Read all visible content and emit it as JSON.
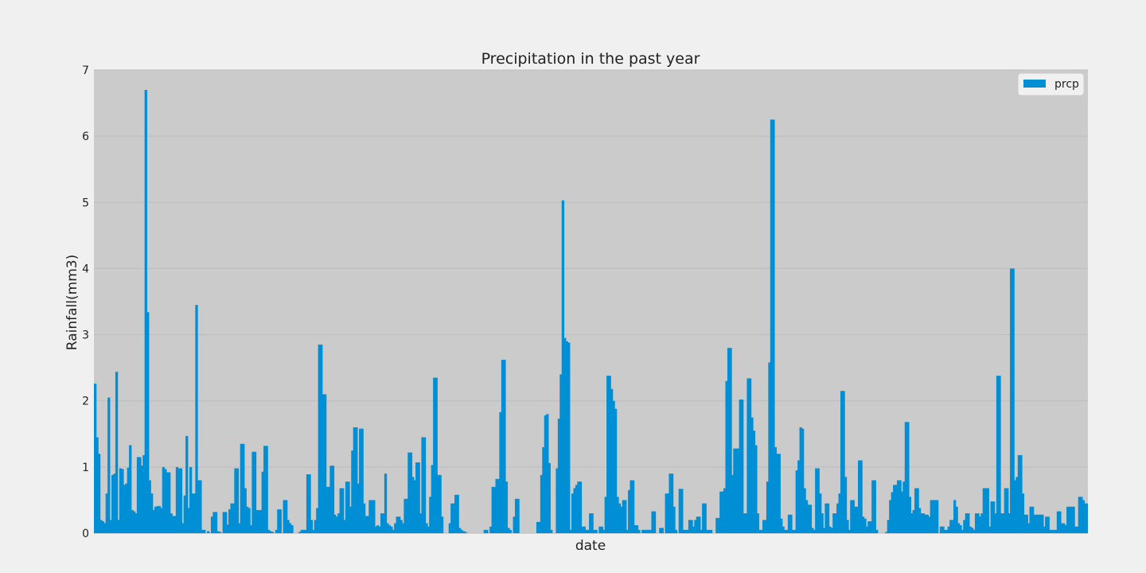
{
  "chart_data": {
    "type": "bar",
    "title": "Precipitation in the past year",
    "xlabel": "date",
    "ylabel": "Rainfall(mm3)",
    "ylim": [
      0,
      7
    ],
    "yticks": [
      0,
      1,
      2,
      3,
      4,
      5,
      6,
      7
    ],
    "grid": true,
    "legend_position": "top-right",
    "colors": {
      "bar": "#008fd5",
      "plot_bg": "#cbcbcb",
      "figure_bg": "#f0f0f0"
    },
    "series": [
      {
        "name": "prcp",
        "values": [
          2.26,
          1.45,
          1.2,
          0.2,
          0.18,
          0.15,
          0.6,
          2.05,
          0.2,
          0.88,
          0.9,
          2.44,
          0.2,
          0.98,
          0.97,
          0.73,
          0.75,
          0.99,
          1.33,
          0.35,
          0.33,
          0.3,
          1.15,
          1.15,
          1.02,
          1.18,
          6.7,
          3.34,
          0.8,
          0.6,
          0.35,
          0.4,
          0.41,
          0.41,
          0.38,
          1.0,
          0.97,
          0.92,
          0.92,
          0.3,
          0.26,
          0.26,
          1.0,
          0.98,
          0.98,
          0.15,
          0.57,
          1.47,
          0.38,
          1.0,
          0.6,
          0.6,
          3.45,
          0.8,
          0.8,
          0.05,
          0.05,
          0.0,
          0.03,
          0.0,
          0.25,
          0.32,
          0.32,
          0.03,
          0.02,
          0.0,
          0.32,
          0.32,
          0.13,
          0.36,
          0.45,
          0.45,
          0.98,
          0.98,
          0.15,
          1.35,
          1.35,
          0.68,
          0.4,
          0.38,
          0.12,
          1.23,
          1.23,
          0.35,
          0.35,
          0.35,
          0.93,
          1.32,
          1.32,
          0.05,
          0.03,
          0.02,
          0.0,
          0.05,
          0.36,
          0.36,
          0.0,
          0.5,
          0.5,
          0.2,
          0.15,
          0.12,
          0.0,
          0.0,
          0.0,
          0.02,
          0.05,
          0.05,
          0.05,
          0.89,
          0.89,
          0.2,
          0.05,
          0.2,
          0.38,
          2.85,
          2.85,
          2.1,
          2.1,
          0.7,
          0.7,
          1.02,
          1.02,
          0.28,
          0.25,
          0.3,
          0.68,
          0.68,
          0.2,
          0.78,
          0.78,
          0.4,
          1.25,
          1.6,
          1.6,
          0.75,
          1.58,
          1.58,
          0.45,
          0.26,
          0.26,
          0.5,
          0.5,
          0.5,
          0.1,
          0.12,
          0.1,
          0.3,
          0.3,
          0.9,
          0.15,
          0.12,
          0.1,
          0.05,
          0.15,
          0.25,
          0.25,
          0.2,
          0.15,
          0.52,
          0.52,
          1.22,
          1.22,
          0.85,
          0.8,
          1.07,
          1.07,
          0.3,
          1.45,
          1.45,
          0.15,
          0.1,
          0.55,
          1.03,
          2.35,
          2.35,
          0.88,
          0.88,
          0.25,
          0.0,
          0.0,
          0.0,
          0.15,
          0.45,
          0.45,
          0.58,
          0.58,
          0.08,
          0.05,
          0.03,
          0.02,
          0.0,
          0.0,
          0.0,
          0.0,
          0.0,
          0.0,
          0.0,
          0.0,
          0.0,
          0.05,
          0.05,
          0.0,
          0.1,
          0.7,
          0.7,
          0.82,
          0.82,
          1.83,
          2.62,
          2.62,
          0.78,
          0.08,
          0.05,
          0.0,
          0.25,
          0.52,
          0.52,
          0.0,
          0.0,
          0.0,
          0.0,
          0.0,
          0.0,
          0.0,
          0.0,
          0.0,
          0.17,
          0.17,
          0.88,
          1.3,
          1.78,
          1.8,
          1.06,
          0.05,
          0.0,
          0.0,
          0.98,
          1.73,
          2.4,
          5.03,
          2.95,
          2.9,
          2.88,
          0.05,
          0.6,
          0.68,
          0.73,
          0.78,
          0.78,
          0.1,
          0.1,
          0.05,
          0.05,
          0.3,
          0.3,
          0.05,
          0.05,
          0.0,
          0.1,
          0.1,
          0.05,
          0.55,
          2.38,
          2.38,
          2.18,
          2.0,
          1.88,
          0.55,
          0.45,
          0.4,
          0.5,
          0.5,
          0.05,
          0.65,
          0.8,
          0.8,
          0.12,
          0.12,
          0.05,
          0.0,
          0.05,
          0.05,
          0.05,
          0.05,
          0.05,
          0.33,
          0.33,
          0.0,
          0.0,
          0.08,
          0.08,
          0.0,
          0.6,
          0.6,
          0.9,
          0.9,
          0.4,
          0.05,
          0.0,
          0.67,
          0.67,
          0.05,
          0.05,
          0.05,
          0.2,
          0.2,
          0.1,
          0.2,
          0.25,
          0.25,
          0.05,
          0.45,
          0.45,
          0.05,
          0.05,
          0.05,
          0.0,
          0.0,
          0.23,
          0.23,
          0.63,
          0.63,
          0.68,
          2.3,
          2.8,
          2.8,
          0.88,
          1.28,
          1.28,
          1.28,
          2.02,
          2.02,
          0.3,
          0.3,
          2.34,
          2.34,
          1.75,
          1.55,
          1.33,
          0.3,
          0.05,
          0.05,
          0.2,
          0.2,
          0.78,
          2.58,
          6.25,
          6.25,
          1.3,
          1.2,
          1.2,
          0.22,
          0.1,
          0.05,
          0.05,
          0.28,
          0.28,
          0.05,
          0.05,
          0.95,
          1.1,
          1.6,
          1.58,
          0.68,
          0.5,
          0.43,
          0.43,
          0.08,
          0.05,
          0.98,
          0.98,
          0.6,
          0.3,
          0.08,
          0.45,
          0.45,
          0.1,
          0.08,
          0.3,
          0.3,
          0.45,
          0.6,
          2.15,
          2.15,
          0.85,
          0.2,
          0.05,
          0.5,
          0.5,
          0.4,
          0.4,
          1.1,
          1.1,
          0.25,
          0.22,
          0.1,
          0.18,
          0.18,
          0.8,
          0.8,
          0.05,
          0.0,
          0.0,
          0.0,
          0.0,
          0.02,
          0.2,
          0.5,
          0.62,
          0.73,
          0.73,
          0.8,
          0.8,
          0.63,
          0.78,
          1.68,
          1.68,
          0.55,
          0.3,
          0.35,
          0.68,
          0.68,
          0.38,
          0.3,
          0.3,
          0.28,
          0.28,
          0.25,
          0.5,
          0.5,
          0.5,
          0.5,
          0.0,
          0.1,
          0.1,
          0.05,
          0.05,
          0.1,
          0.2,
          0.2,
          0.5,
          0.4,
          0.15,
          0.12,
          0.05,
          0.2,
          0.3,
          0.3,
          0.1,
          0.08,
          0.05,
          0.3,
          0.3,
          0.25,
          0.3,
          0.68,
          0.68,
          0.68,
          0.1,
          0.48,
          0.48,
          0.3,
          2.38,
          2.38,
          0.3,
          0.3,
          0.68,
          0.68,
          0.3,
          4.0,
          4.0,
          0.8,
          0.85,
          1.18,
          1.18,
          0.6,
          0.28,
          0.28,
          0.15,
          0.4,
          0.4,
          0.28,
          0.28,
          0.28,
          0.28,
          0.28,
          0.1,
          0.25,
          0.25,
          0.05,
          0.05,
          0.05,
          0.05,
          0.33,
          0.33,
          0.15,
          0.15,
          0.12,
          0.4,
          0.4,
          0.4,
          0.4,
          0.1,
          0.1,
          0.55,
          0.55,
          0.5,
          0.45,
          0.45
        ]
      }
    ]
  }
}
